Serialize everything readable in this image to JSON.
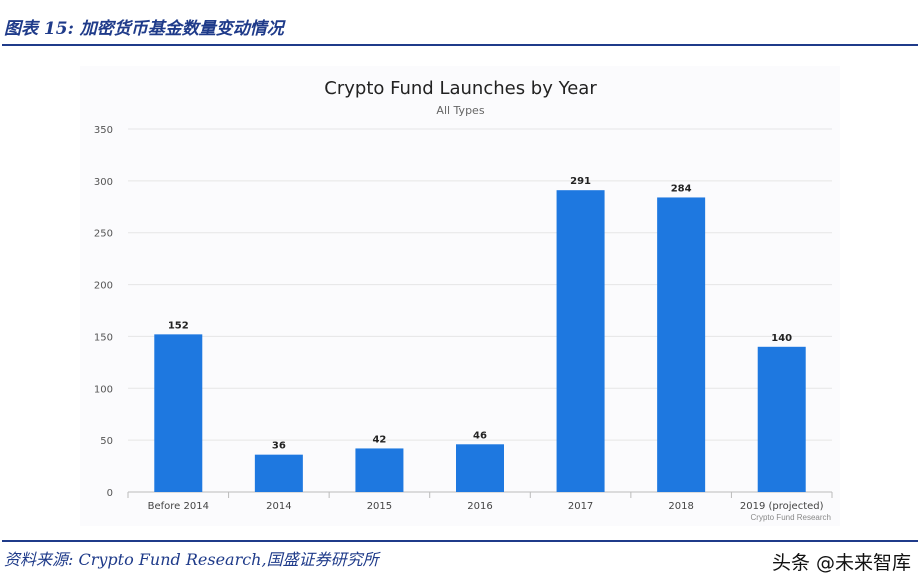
{
  "figure": {
    "title": "图表 15: 加密货币基金数量变动情况",
    "source": "资料来源: Crypto Fund Research,国盛证券研究所",
    "watermark": "头条 @未来智库"
  },
  "colors": {
    "bar": "#1e78e0",
    "brand": "#1f3b8a",
    "grid": "#e6e6e6"
  },
  "chart_data": {
    "type": "bar",
    "title": "Crypto Fund Launches by Year",
    "subtitle": "All Types",
    "credit": "Crypto Fund Research",
    "categories": [
      "Before 2014",
      "2014",
      "2015",
      "2016",
      "2017",
      "2018",
      "2019 (projected)"
    ],
    "values": [
      152,
      36,
      42,
      46,
      291,
      284,
      140
    ],
    "data_labels": [
      "152",
      "36",
      "42",
      "46",
      "291",
      "284",
      "140"
    ],
    "yticks": [
      0,
      50,
      100,
      150,
      200,
      250,
      300,
      350
    ],
    "ylim": [
      0,
      350
    ],
    "xlabel": "",
    "ylabel": "",
    "grid": true
  }
}
